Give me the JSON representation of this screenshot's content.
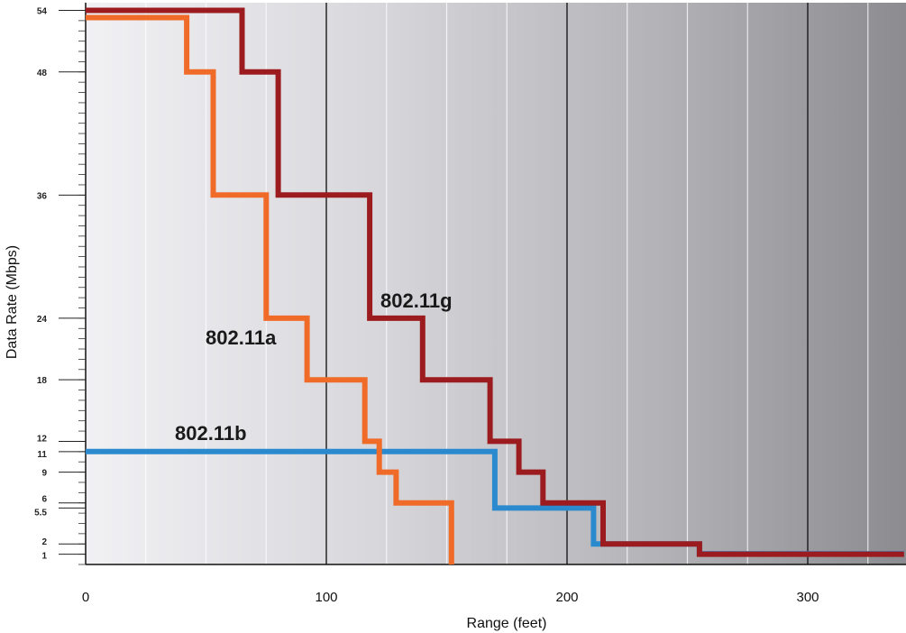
{
  "chart_data": {
    "type": "line",
    "xlabel": "Range (feet)",
    "ylabel": "Data Rate (Mbps)",
    "xlim": [
      0,
      340
    ],
    "ylim": [
      0,
      55
    ],
    "x_ticks": [
      0,
      100,
      200,
      300
    ],
    "x_tick_labels": [
      "0",
      "100",
      "200",
      "300"
    ],
    "y_ticks": [
      1,
      2,
      5.5,
      6,
      9,
      11,
      12,
      18,
      24,
      36,
      48,
      54
    ],
    "y_tick_labels": [
      "1",
      "2",
      "5.5",
      "6",
      "9",
      "11",
      "12",
      "18",
      "24",
      "36",
      "48",
      "54"
    ],
    "background": "grey gradient, darker toward larger range",
    "grid": true,
    "series": [
      {
        "name": "802.11g",
        "color": "#9b1b1f",
        "x": [
          0,
          65,
          65,
          80,
          80,
          118,
          118,
          140,
          140,
          168,
          168,
          180,
          180,
          190,
          190,
          215,
          215,
          255,
          255,
          340
        ],
        "y": [
          54,
          54,
          48,
          48,
          36,
          36,
          24,
          24,
          18,
          18,
          12,
          12,
          9,
          9,
          6,
          6,
          2,
          2,
          1,
          1
        ]
      },
      {
        "name": "802.11a",
        "color": "#f06a28",
        "x": [
          0,
          42,
          42,
          53,
          53,
          75,
          75,
          92,
          92,
          116,
          116,
          122,
          122,
          129,
          129,
          152,
          152
        ],
        "y": [
          53.3,
          53.3,
          48,
          48,
          36,
          36,
          24,
          24,
          18,
          18,
          12,
          12,
          9,
          9,
          6,
          6,
          0
        ]
      },
      {
        "name": "802.11b",
        "color": "#2b8acd",
        "x": [
          0,
          170,
          170,
          211,
          211,
          255,
          255,
          340
        ],
        "y": [
          11,
          11,
          5.5,
          5.5,
          2,
          2,
          1.05,
          1.05
        ]
      }
    ],
    "annotations": [
      "802.11g",
      "802.11a",
      "802.11b"
    ]
  }
}
